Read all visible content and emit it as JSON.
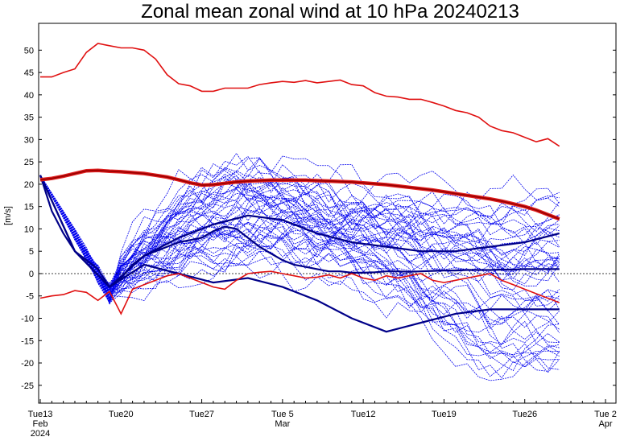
{
  "chart_data": {
    "type": "line",
    "title": "Zonal mean zonal wind at 10 hPa 20240213",
    "ylabel": "[m/s]",
    "xlabel": "",
    "ylim": [
      -29,
      56
    ],
    "xlim_days": [
      0,
      49
    ],
    "y_ticks": [
      50,
      45,
      40,
      35,
      30,
      25,
      20,
      15,
      10,
      5,
      0,
      -5,
      -10,
      -15,
      -20,
      -25
    ],
    "x_ticks": [
      {
        "day": 0,
        "label": "Tue13",
        "sub1": "Feb",
        "sub2": "2024"
      },
      {
        "day": 7,
        "label": "Tue20",
        "sub1": "",
        "sub2": ""
      },
      {
        "day": 14,
        "label": "Tue27",
        "sub1": "",
        "sub2": ""
      },
      {
        "day": 21,
        "label": "Tue 5",
        "sub1": "Mar",
        "sub2": ""
      },
      {
        "day": 28,
        "label": "Tue12",
        "sub1": "",
        "sub2": ""
      },
      {
        "day": 35,
        "label": "Tue19",
        "sub1": "",
        "sub2": ""
      },
      {
        "day": 42,
        "label": "Tue26",
        "sub1": "",
        "sub2": ""
      },
      {
        "day": 49,
        "label": "Tue 2",
        "sub1": "Apr",
        "sub2": ""
      }
    ],
    "zero_line": true,
    "colors": {
      "max_min": "#e01010",
      "climatology": "#a00000",
      "climatology_outline": "#e02020",
      "members": "#0000ee",
      "highlight": "#000088",
      "zero": "#000000"
    },
    "max_series": {
      "x": [
        0,
        1,
        2,
        3,
        4,
        5,
        6,
        7,
        8,
        9,
        10,
        11,
        12,
        13,
        14,
        15,
        16,
        17,
        18,
        19,
        20,
        21,
        22,
        23,
        24,
        25,
        26,
        27,
        28,
        29,
        30,
        31,
        32,
        33,
        34,
        35,
        36,
        37,
        38,
        39,
        40,
        41,
        42,
        43,
        44,
        45
      ],
      "values": [
        44,
        44,
        45,
        45.8,
        49.5,
        51.5,
        51,
        50.5,
        50.5,
        50,
        48,
        44.5,
        42.5,
        42,
        40.8,
        40.8,
        41.5,
        41.5,
        41.5,
        42.3,
        42.7,
        43,
        42.8,
        43.2,
        42.7,
        43,
        43.3,
        42.3,
        42,
        40.5,
        39.7,
        39.5,
        39,
        39,
        38.3,
        37.5,
        36.5,
        36,
        35,
        33,
        32,
        31.5,
        30.5,
        29.5,
        30.2,
        28.5
      ]
    },
    "min_series": {
      "x": [
        0,
        1,
        2,
        3,
        4,
        5,
        6,
        7,
        8,
        9,
        10,
        11,
        12,
        13,
        14,
        15,
        16,
        17,
        18,
        19,
        20,
        21,
        22,
        23,
        24,
        25,
        26,
        27,
        28,
        29,
        30,
        31,
        32,
        33,
        34,
        35,
        36,
        37,
        38,
        39,
        40,
        41,
        42,
        43,
        44,
        45
      ],
      "values": [
        -5.5,
        -5,
        -4.7,
        -3.8,
        -4.2,
        -6,
        -4,
        -9,
        -3.5,
        -2.5,
        -1.5,
        -0.5,
        0,
        -1,
        -2,
        -3,
        -3.5,
        -1.5,
        0,
        0.3,
        0.5,
        0,
        -0.5,
        -1,
        -0.8,
        -0.3,
        -1,
        0,
        -1,
        -1.5,
        -0.5,
        -1,
        -0.5,
        0,
        -1.5,
        -2,
        -1.5,
        -1,
        -0.5,
        0,
        -1.5,
        -2.5,
        -3.5,
        -4.5,
        -5.5,
        -6.5
      ]
    },
    "climatology": {
      "x": [
        0,
        1,
        2,
        3,
        4,
        5,
        6,
        7,
        8,
        9,
        10,
        11,
        12,
        13,
        14,
        15,
        16,
        17,
        18,
        19,
        20,
        21,
        22,
        23,
        24,
        25,
        26,
        27,
        28,
        29,
        30,
        31,
        32,
        33,
        34,
        35,
        36,
        37,
        38,
        39,
        40,
        41,
        42,
        43,
        44,
        45
      ],
      "values": [
        21,
        21.3,
        21.8,
        22.4,
        23,
        23.1,
        22.9,
        22.8,
        22.6,
        22.4,
        22,
        21.6,
        21,
        20.3,
        19.8,
        19.9,
        20.2,
        20.5,
        20.7,
        20.8,
        20.9,
        20.9,
        20.9,
        20.9,
        20.8,
        20.7,
        20.6,
        20.5,
        20.3,
        20.1,
        19.9,
        19.6,
        19.3,
        19,
        18.7,
        18.3,
        17.9,
        17.5,
        17.1,
        16.7,
        16.2,
        15.6,
        15,
        14.2,
        13.2,
        12.2
      ]
    },
    "highlight_members": [
      {
        "x": [
          0,
          1,
          2,
          3,
          4,
          5,
          6,
          7,
          8,
          9,
          10,
          11,
          12,
          13,
          14,
          15,
          16,
          17,
          18,
          19,
          20,
          21,
          22,
          23,
          24,
          25,
          26,
          27,
          28,
          29,
          30,
          31,
          32,
          33,
          34,
          35,
          36,
          37,
          38,
          39,
          40,
          41,
          42,
          43,
          44,
          45
        ],
        "values": [
          22,
          14,
          9,
          5,
          3,
          1,
          -3,
          -1,
          2,
          4,
          5,
          6,
          7,
          7.5,
          8,
          9.5,
          10.5,
          10,
          8,
          6,
          4.5,
          3,
          2,
          1.5,
          1,
          0.5,
          0.5,
          0.2,
          0.2,
          0.3,
          0.5,
          0.5,
          0.4,
          0.5,
          0.6,
          0.7,
          0.7,
          0.8,
          0.8,
          0.8,
          0.9,
          0.9,
          1,
          1,
          1,
          1
        ]
      },
      {
        "x": [
          0,
          3,
          6,
          9,
          12,
          15,
          18,
          21,
          24,
          27,
          30,
          33,
          36,
          39,
          42,
          45
        ],
        "values": [
          22,
          5,
          -3,
          2,
          0,
          -2,
          -1,
          -3,
          -6,
          -10,
          -13,
          -11,
          -9,
          -8,
          -8,
          -8
        ]
      },
      {
        "x": [
          0,
          3,
          6,
          9,
          12,
          15,
          18,
          21,
          24,
          27,
          30,
          33,
          36,
          39,
          42,
          45
        ],
        "values": [
          22,
          5,
          -3,
          4,
          8,
          11,
          13,
          12,
          9,
          7,
          6,
          5,
          5,
          6,
          7,
          9
        ]
      }
    ]
  }
}
